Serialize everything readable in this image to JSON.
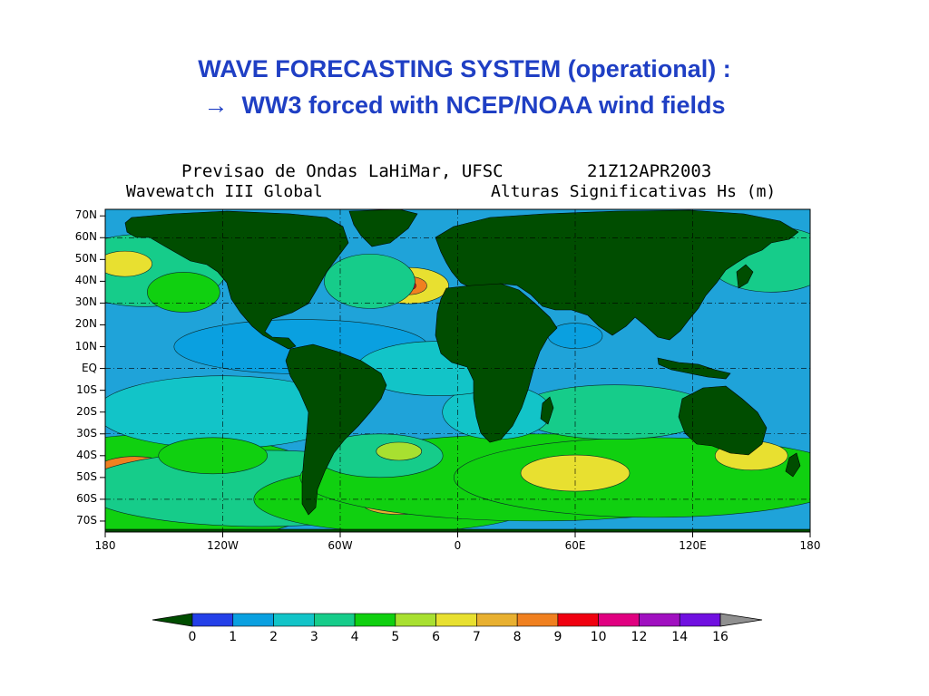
{
  "slide": {
    "title_line1": "WAVE FORECASTING SYSTEM  (operational) :",
    "title_arrow": "→",
    "title_line2": "WW3 forced with NCEP/NOAA wind fields"
  },
  "plot": {
    "header_left": "Previsao de Ondas LaHiMar, UFSC",
    "header_right": "21Z12APR2003",
    "subheader_left": "Wavewatch III Global",
    "subheader_right": "Alturas Significativas Hs (m)"
  },
  "map": {
    "lat_labels": [
      "70N",
      "60N",
      "50N",
      "40N",
      "30N",
      "20N",
      "10N",
      "EQ",
      "10S",
      "20S",
      "30S",
      "40S",
      "50S",
      "60S",
      "70S"
    ],
    "lon_labels": [
      "180",
      "120W",
      "60W",
      "0",
      "60E",
      "120E",
      "180"
    ],
    "land_color": "#004d00",
    "ocean_base_color": "#1fa3d9"
  },
  "colorbar": {
    "labels": [
      "0",
      "1",
      "2",
      "3",
      "4",
      "5",
      "6",
      "7",
      "8",
      "9",
      "10",
      "12",
      "14",
      "16"
    ],
    "colors": [
      "#2440e8",
      "#0aa0e0",
      "#12c4c8",
      "#16cc8a",
      "#10d010",
      "#a8e030",
      "#e8e030",
      "#e8b030",
      "#f08020",
      "#f00010",
      "#e00080",
      "#a010c0",
      "#7010e0"
    ],
    "under_color": "#004d00",
    "over_color": "#909090"
  }
}
